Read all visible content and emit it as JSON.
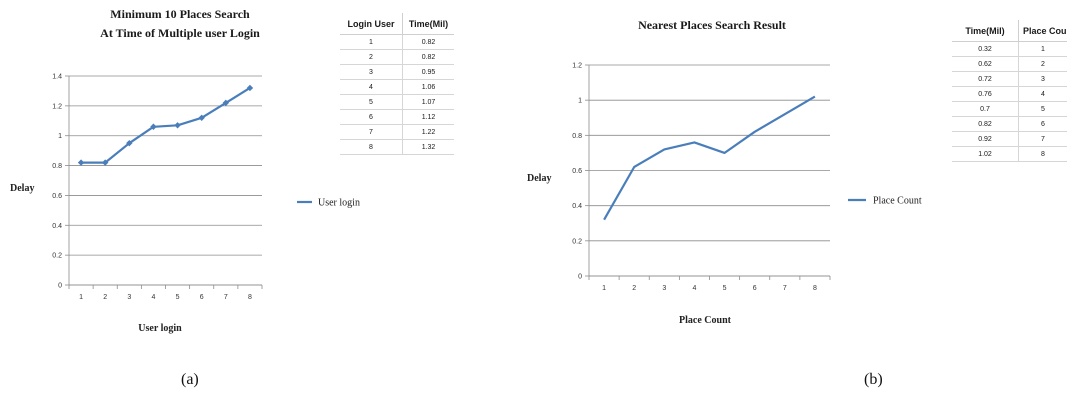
{
  "chart_data": [
    {
      "type": "line",
      "title": [
        "Minimum 10 Places Search",
        "At Time of Multiple user Login"
      ],
      "xlabel": "User login",
      "ylabel": "Delay",
      "categories": [
        "1",
        "2",
        "3",
        "4",
        "5",
        "6",
        "7",
        "8"
      ],
      "series": [
        {
          "name": "User login",
          "values": [
            0.82,
            0.82,
            0.95,
            1.06,
            1.07,
            1.12,
            1.22,
            1.32
          ],
          "color": "#4a7ebb",
          "markers": "diamond"
        }
      ],
      "ylim": [
        0,
        1.4
      ],
      "yticks": [
        "0",
        "0.2",
        "0.4",
        "0.6",
        "0.8",
        "1",
        "1.2",
        "1.4"
      ],
      "grid": true,
      "legend_position": "right",
      "caption": "(a)",
      "table": {
        "headers": [
          "Login User",
          "Time(Mil)"
        ],
        "rows": [
          [
            "1",
            "0.82"
          ],
          [
            "2",
            "0.82"
          ],
          [
            "3",
            "0.95"
          ],
          [
            "4",
            "1.06"
          ],
          [
            "5",
            "1.07"
          ],
          [
            "6",
            "1.12"
          ],
          [
            "7",
            "1.22"
          ],
          [
            "8",
            "1.32"
          ]
        ]
      }
    },
    {
      "type": "line",
      "title": [
        "Nearest Places Search Result"
      ],
      "xlabel": "Place Count",
      "ylabel": "Delay",
      "categories": [
        "1",
        "2",
        "3",
        "4",
        "5",
        "6",
        "7",
        "8"
      ],
      "series": [
        {
          "name": "Place Count",
          "values": [
            0.32,
            0.62,
            0.72,
            0.76,
            0.7,
            0.82,
            0.92,
            1.02
          ],
          "color": "#4a7ebb",
          "markers": "none"
        }
      ],
      "ylim": [
        0,
        1.2
      ],
      "yticks": [
        "0",
        "0.2",
        "0.4",
        "0.6",
        "0.8",
        "1",
        "1.2"
      ],
      "grid": true,
      "legend_position": "right",
      "caption": "(b)",
      "table": {
        "headers": [
          "Time(Mil)",
          "Place Coun"
        ],
        "rows": [
          [
            "0.32",
            "1"
          ],
          [
            "0.62",
            "2"
          ],
          [
            "0.72",
            "3"
          ],
          [
            "0.76",
            "4"
          ],
          [
            "0.7",
            "5"
          ],
          [
            "0.82",
            "6"
          ],
          [
            "0.92",
            "7"
          ],
          [
            "1.02",
            "8"
          ]
        ]
      }
    }
  ]
}
